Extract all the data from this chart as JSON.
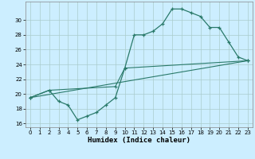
{
  "xlabel": "Humidex (Indice chaleur)",
  "bg_color": "#cceeff",
  "grid_color": "#aacccc",
  "line_color": "#2a7a6a",
  "xlim": [
    -0.5,
    23.5
  ],
  "ylim": [
    15.5,
    32.5
  ],
  "xticks": [
    0,
    1,
    2,
    3,
    4,
    5,
    6,
    7,
    8,
    9,
    10,
    11,
    12,
    13,
    14,
    15,
    16,
    17,
    18,
    19,
    20,
    21,
    22,
    23
  ],
  "yticks": [
    16,
    18,
    20,
    22,
    24,
    26,
    28,
    30
  ],
  "line1_x": [
    0,
    2,
    3,
    4,
    5,
    6,
    7,
    8,
    9,
    10,
    11,
    12,
    13,
    14,
    15,
    16,
    17,
    18,
    19,
    20,
    21,
    22,
    23
  ],
  "line1_y": [
    19.5,
    20.5,
    19.0,
    18.5,
    16.5,
    17.0,
    17.5,
    18.5,
    19.5,
    23.5,
    28.0,
    28.0,
    28.5,
    29.5,
    31.5,
    31.5,
    31.0,
    30.5,
    29.0,
    29.0,
    27.0,
    25.0,
    24.5
  ],
  "line2_x": [
    0,
    2,
    9,
    10,
    23
  ],
  "line2_y": [
    19.5,
    20.5,
    21.0,
    23.5,
    24.5
  ],
  "line3_x": [
    0,
    23
  ],
  "line3_y": [
    19.5,
    24.5
  ]
}
